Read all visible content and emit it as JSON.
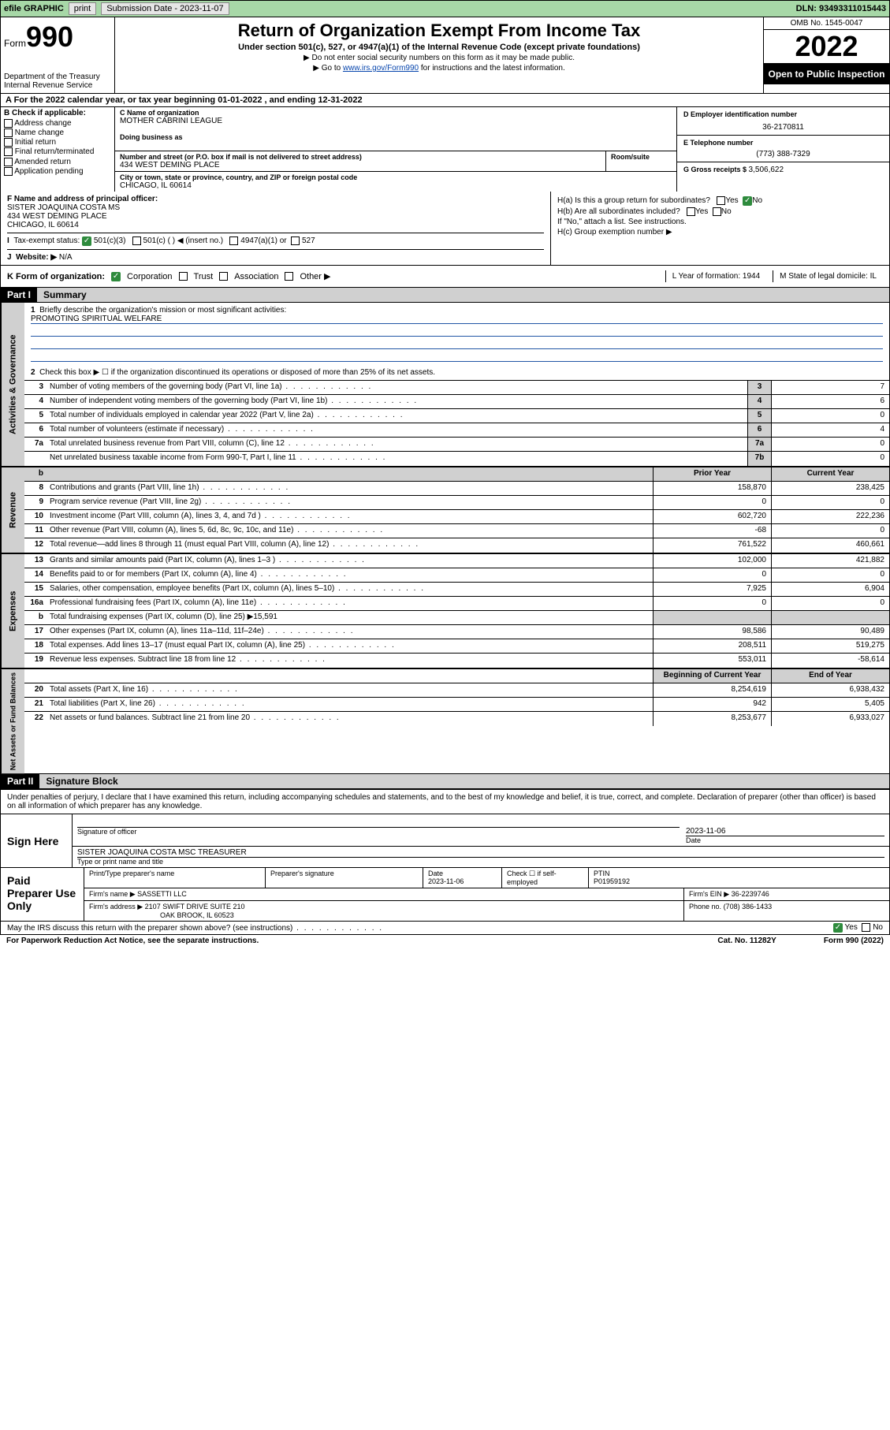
{
  "topbar": {
    "efile": "efile GRAPHIC",
    "print": "print",
    "subdate_label": "Submission Date - ",
    "subdate": "2023-11-07",
    "dln": "DLN: 93493311015443"
  },
  "header": {
    "form_prefix": "Form",
    "form_num": "990",
    "dept": "Department of the Treasury",
    "irs": "Internal Revenue Service",
    "title": "Return of Organization Exempt From Income Tax",
    "sub": "Under section 501(c), 527, or 4947(a)(1) of the Internal Revenue Code (except private foundations)",
    "warn": "▶ Do not enter social security numbers on this form as it may be made public.",
    "goto_pre": "▶ Go to ",
    "goto_link": "www.irs.gov/Form990",
    "goto_post": " for instructions and the latest information.",
    "omb": "OMB No. 1545-0047",
    "year": "2022",
    "opento": "Open to Public Inspection"
  },
  "rowA": "A For the 2022 calendar year, or tax year beginning 01-01-2022   , and ending 12-31-2022",
  "colB": {
    "hdr": "B Check if applicable:",
    "items": [
      "Address change",
      "Name change",
      "Initial return",
      "Final return/terminated",
      "Amended return",
      "Application pending"
    ]
  },
  "colC": {
    "name_label": "C Name of organization",
    "name": "MOTHER CABRINI LEAGUE",
    "dba_label": "Doing business as",
    "addr_label": "Number and street (or P.O. box if mail is not delivered to street address)",
    "room_label": "Room/suite",
    "addr": "434 WEST DEMING PLACE",
    "city_label": "City or town, state or province, country, and ZIP or foreign postal code",
    "city": "CHICAGO, IL  60614"
  },
  "colDE": {
    "d_label": "D Employer identification number",
    "d_val": "36-2170811",
    "e_label": "E Telephone number",
    "e_val": "(773) 388-7329",
    "g_label": "G Gross receipts $ ",
    "g_val": "3,506,622"
  },
  "rowF": {
    "label": "F  Name and address of principal officer:",
    "line1": "SISTER JOAQUINA COSTA MS",
    "line2": "434 WEST DEMING PLACE",
    "line3": "CHICAGO, IL  60614"
  },
  "rowH": {
    "ha": "H(a)  Is this a group return for subordinates?",
    "hb": "H(b)  Are all subordinates included?",
    "hb_note": "If \"No,\" attach a list. See instructions.",
    "hc": "H(c)  Group exemption number ▶",
    "yes": "Yes",
    "no": "No"
  },
  "rowI": {
    "label": "Tax-exempt status:",
    "opts": [
      "501(c)(3)",
      "501(c) (  ) ◀ (insert no.)",
      "4947(a)(1) or",
      "527"
    ]
  },
  "rowJ": {
    "label": "Website: ▶",
    "val": "N/A"
  },
  "rowK": {
    "label": "K Form of organization:",
    "opts": [
      "Corporation",
      "Trust",
      "Association",
      "Other ▶"
    ],
    "L": "L Year of formation: 1944",
    "M": "M State of legal domicile: IL"
  },
  "part1": {
    "hdr": "Part I",
    "title": "Summary",
    "line1_label": "Briefly describe the organization's mission or most significant activities:",
    "line1_val": "PROMOTING SPIRITUAL WELFARE",
    "line2": "Check this box ▶ ☐  if the organization discontinued its operations or disposed of more than 25% of its net assets."
  },
  "governance": {
    "tab": "Activities & Governance",
    "rows": [
      {
        "n": "3",
        "d": "Number of voting members of the governing body (Part VI, line 1a)",
        "box": "3",
        "v": "7"
      },
      {
        "n": "4",
        "d": "Number of independent voting members of the governing body (Part VI, line 1b)",
        "box": "4",
        "v": "6"
      },
      {
        "n": "5",
        "d": "Total number of individuals employed in calendar year 2022 (Part V, line 2a)",
        "box": "5",
        "v": "0"
      },
      {
        "n": "6",
        "d": "Total number of volunteers (estimate if necessary)",
        "box": "6",
        "v": "4"
      },
      {
        "n": "7a",
        "d": "Total unrelated business revenue from Part VIII, column (C), line 12",
        "box": "7a",
        "v": "0"
      },
      {
        "n": "",
        "d": "Net unrelated business taxable income from Form 990-T, Part I, line 11",
        "box": "7b",
        "v": "0"
      }
    ]
  },
  "colheads": {
    "prior": "Prior Year",
    "current": "Current Year",
    "begin": "Beginning of Current Year",
    "end": "End of Year"
  },
  "revenue": {
    "tab": "Revenue",
    "rows": [
      {
        "n": "8",
        "d": "Contributions and grants (Part VIII, line 1h)",
        "p": "158,870",
        "c": "238,425"
      },
      {
        "n": "9",
        "d": "Program service revenue (Part VIII, line 2g)",
        "p": "0",
        "c": "0"
      },
      {
        "n": "10",
        "d": "Investment income (Part VIII, column (A), lines 3, 4, and 7d )",
        "p": "602,720",
        "c": "222,236"
      },
      {
        "n": "11",
        "d": "Other revenue (Part VIII, column (A), lines 5, 6d, 8c, 9c, 10c, and 11e)",
        "p": "-68",
        "c": "0"
      },
      {
        "n": "12",
        "d": "Total revenue—add lines 8 through 11 (must equal Part VIII, column (A), line 12)",
        "p": "761,522",
        "c": "460,661"
      }
    ]
  },
  "expenses": {
    "tab": "Expenses",
    "rows": [
      {
        "n": "13",
        "d": "Grants and similar amounts paid (Part IX, column (A), lines 1–3 )",
        "p": "102,000",
        "c": "421,882"
      },
      {
        "n": "14",
        "d": "Benefits paid to or for members (Part IX, column (A), line 4)",
        "p": "0",
        "c": "0"
      },
      {
        "n": "15",
        "d": "Salaries, other compensation, employee benefits (Part IX, column (A), lines 5–10)",
        "p": "7,925",
        "c": "6,904"
      },
      {
        "n": "16a",
        "d": "Professional fundraising fees (Part IX, column (A), line 11e)",
        "p": "0",
        "c": "0"
      },
      {
        "n": "b",
        "d": "Total fundraising expenses (Part IX, column (D), line 25) ▶15,591",
        "p": "",
        "c": "",
        "nocols": true
      },
      {
        "n": "17",
        "d": "Other expenses (Part IX, column (A), lines 11a–11d, 11f–24e)",
        "p": "98,586",
        "c": "90,489"
      },
      {
        "n": "18",
        "d": "Total expenses. Add lines 13–17 (must equal Part IX, column (A), line 25)",
        "p": "208,511",
        "c": "519,275"
      },
      {
        "n": "19",
        "d": "Revenue less expenses. Subtract line 18 from line 12",
        "p": "553,011",
        "c": "-58,614"
      }
    ]
  },
  "netassets": {
    "tab": "Net Assets or Fund Balances",
    "rows": [
      {
        "n": "20",
        "d": "Total assets (Part X, line 16)",
        "p": "8,254,619",
        "c": "6,938,432"
      },
      {
        "n": "21",
        "d": "Total liabilities (Part X, line 26)",
        "p": "942",
        "c": "5,405"
      },
      {
        "n": "22",
        "d": "Net assets or fund balances. Subtract line 21 from line 20",
        "p": "8,253,677",
        "c": "6,933,027"
      }
    ]
  },
  "part2": {
    "hdr": "Part II",
    "title": "Signature Block",
    "decl": "Under penalties of perjury, I declare that I have examined this return, including accompanying schedules and statements, and to the best of my knowledge and belief, it is true, correct, and complete. Declaration of preparer (other than officer) is based on all information of which preparer has any knowledge."
  },
  "sign": {
    "label": "Sign Here",
    "sig_label": "Signature of officer",
    "date_label": "Date",
    "date": "2023-11-06",
    "name": "SISTER JOAQUINA COSTA MSC  TREASURER",
    "name_label": "Type or print name and title"
  },
  "prep": {
    "label": "Paid Preparer Use Only",
    "h1": "Print/Type preparer's name",
    "h2": "Preparer's signature",
    "h3": "Date",
    "h3v": "2023-11-06",
    "h4": "Check ☐ if self-employed",
    "h5": "PTIN",
    "h5v": "P01959192",
    "firm_label": "Firm's name    ▶",
    "firm": "SASSETTI LLC",
    "ein_label": "Firm's EIN ▶",
    "ein": "36-2239746",
    "addr_label": "Firm's address ▶",
    "addr1": "2107 SWIFT DRIVE SUITE 210",
    "addr2": "OAK BROOK, IL  60523",
    "phone_label": "Phone no.",
    "phone": "(708) 386-1433"
  },
  "footer": {
    "may": "May the IRS discuss this return with the preparer shown above? (see instructions)",
    "yes": "Yes",
    "no": "No",
    "pra": "For Paperwork Reduction Act Notice, see the separate instructions.",
    "cat": "Cat. No. 11282Y",
    "form": "Form 990 (2022)"
  }
}
